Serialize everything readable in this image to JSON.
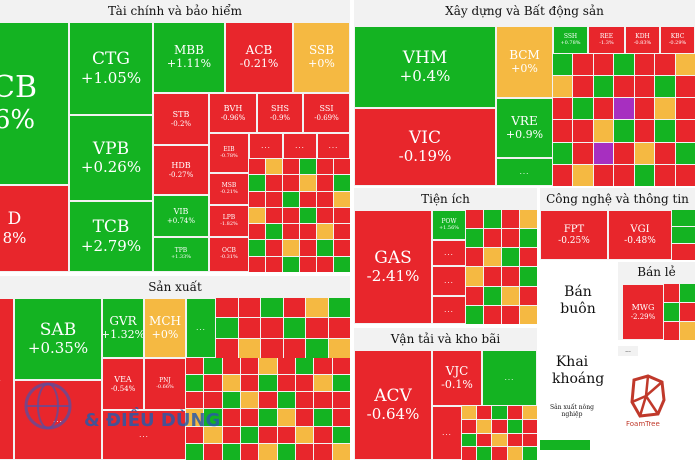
{
  "panels": {
    "finance": "Tài chính và bảo hiểm",
    "realestate": "Xây dựng và Bất động sản",
    "utilities": "Tiện ích",
    "tech": "Công nghệ và thông tin",
    "manufacturing": "Sản xuất",
    "retail": "Bán lẻ",
    "wholesale": "Bán buôn",
    "transport": "Vận tải và kho bãi",
    "mining": "Khai khoáng",
    "agriculture": "Sản xuất nông nghiệp"
  },
  "tiles": {
    "vcb": {
      "ticker": "CB",
      "change": "6%"
    },
    "bid": {
      "ticker": "D",
      "change": "8%"
    },
    "ctg": {
      "ticker": "CTG",
      "change": "+1.05%"
    },
    "vpb": {
      "ticker": "VPB",
      "change": "+0.26%"
    },
    "tcb": {
      "ticker": "TCB",
      "change": "+2.79%"
    },
    "mbb": {
      "ticker": "MBB",
      "change": "+1.11%"
    },
    "acb": {
      "ticker": "ACB",
      "change": "-0.21%"
    },
    "ssb": {
      "ticker": "SSB",
      "change": "+0%"
    },
    "stb": {
      "ticker": "STB",
      "change": "-0.2%"
    },
    "bvh": {
      "ticker": "BVH",
      "change": "-0.96%"
    },
    "shs": {
      "ticker": "SHS",
      "change": "-0.9%"
    },
    "ssi": {
      "ticker": "SSI",
      "change": "-0.69%"
    },
    "hdb": {
      "ticker": "HDB",
      "change": "-0.27%"
    },
    "eib": {
      "ticker": "EIB",
      "change": "-0.78%"
    },
    "vib": {
      "ticker": "VIB",
      "change": "+0.74%"
    },
    "msb": {
      "ticker": "MSB",
      "change": "-0.21%"
    },
    "lpb": {
      "ticker": "LPB",
      "change": "-1.82%"
    },
    "tpb": {
      "ticker": "TPB",
      "change": "+1.33%"
    },
    "ocb": {
      "ticker": "OCB",
      "change": "-0.31%"
    },
    "vhm": {
      "ticker": "VHM",
      "change": "+0.4%"
    },
    "vic": {
      "ticker": "VIC",
      "change": "-0.19%"
    },
    "bcm": {
      "ticker": "BCM",
      "change": "+0%"
    },
    "vre": {
      "ticker": "VRE",
      "change": "+0.9%"
    },
    "ssh": {
      "ticker": "SSH",
      "change": "+0.78%"
    },
    "ree": {
      "ticker": "REE",
      "change": "-1.3%"
    },
    "kdh": {
      "ticker": "KDH",
      "change": "-0.83%"
    },
    "kbc": {
      "ticker": "KBC",
      "change": "-0.29%"
    },
    "gas": {
      "ticker": "GAS",
      "change": "-2.41%"
    },
    "pow": {
      "ticker": "POW",
      "change": "+1.56%"
    },
    "fpt": {
      "ticker": "FPT",
      "change": "-0.25%"
    },
    "vgi": {
      "ticker": "VGI",
      "change": "-0.48%"
    },
    "sab": {
      "ticker": "SAB",
      "change": "+0.35%"
    },
    "gvr": {
      "ticker": "GVR",
      "change": "+1.32%"
    },
    "mch": {
      "ticker": "MCH",
      "change": "+0%"
    },
    "vea": {
      "ticker": "VEA",
      "change": "-0.54%"
    },
    "pnj": {
      "ticker": "PNJ",
      "change": "-0.66%"
    },
    "mwg": {
      "ticker": "MWG",
      "change": "-2.29%"
    },
    "acv": {
      "ticker": "ACV",
      "change": "-0.64%"
    },
    "vjc": {
      "ticker": "VJC",
      "change": "-0.1%"
    }
  },
  "more_label": "...",
  "watermark": "& ĐIỀU DÙNG",
  "foamtree": "FoamTree",
  "colors": {
    "up": "#14b322",
    "down": "#e8262c",
    "flat": "#f5b942",
    "ceiling": "#a72fc0"
  }
}
